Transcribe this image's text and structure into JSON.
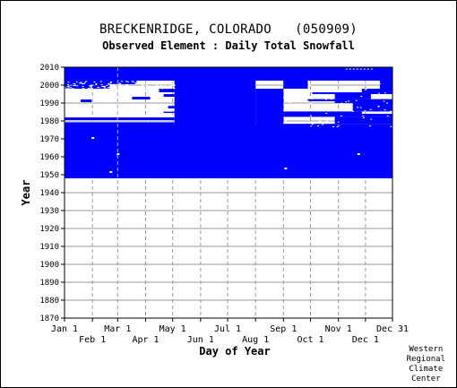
{
  "chart_data": {
    "type": "heatmap",
    "title": "BRECKENRIDGE, COLORADO   (050909)",
    "subtitle": "Observed Element : Daily Total Snowfall",
    "xlabel": "Day of Year",
    "ylabel": "Year",
    "x_ticks_top_row": [
      "Jan 1",
      "Mar 1",
      "May 1",
      "Jul 1",
      "Sep 1",
      "Nov 1",
      "Dec 31"
    ],
    "x_ticks_bottom_row": [
      "Feb 1",
      "Apr 1",
      "Jun 1",
      "Aug 1",
      "Oct 1",
      "Dec 1"
    ],
    "y_ticks": [
      "2010",
      "2000",
      "1990",
      "1980",
      "1970",
      "1960",
      "1950",
      "1940",
      "1930",
      "1920",
      "1910",
      "1900",
      "1890",
      "1880",
      "1870"
    ],
    "ylim": [
      1870,
      2010
    ],
    "xlim": [
      "Jan 1",
      "Dec 31"
    ],
    "grid": "dashed",
    "color": "#0000ff",
    "summary": "Data present (blue) for nearly all days from 1948 to 2010, with gaps in the late 1970s through early 2000s during January-May and September-December"
  },
  "credit": [
    "Western",
    "Regional",
    "Climate",
    "Center"
  ]
}
